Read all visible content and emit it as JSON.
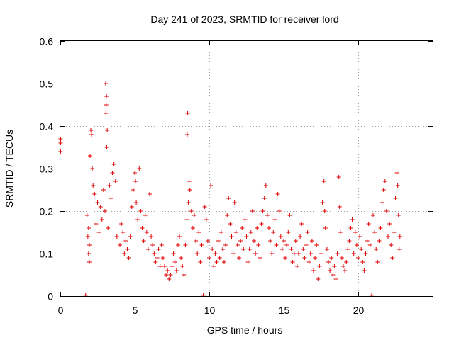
{
  "chart_data": {
    "type": "scatter",
    "title": "Day 241 of 2023, SRMTID for receiver lord",
    "xlabel": "GPS time / hours",
    "ylabel": "SRMTID / TECUs",
    "xlim": [
      0,
      25
    ],
    "ylim": [
      0,
      0.6
    ],
    "xticks": [
      0,
      5,
      10,
      15,
      20
    ],
    "xtick_labels": [
      "0",
      "5",
      "10",
      "15",
      "20"
    ],
    "yticks": [
      0,
      0.1,
      0.2,
      0.3,
      0.4,
      0.5,
      0.6
    ],
    "ytick_labels": [
      "0",
      "0.1",
      "0.2",
      "0.3",
      "0.4",
      "0.5",
      "0.6"
    ],
    "grid": true,
    "marker": "+",
    "color": "#e00000",
    "series": [
      {
        "name": "SRMTID",
        "points": [
          [
            0.02,
            0.37
          ],
          [
            0.02,
            0.36
          ],
          [
            0.02,
            0.34
          ],
          [
            1.7,
            0.002
          ],
          [
            9.6,
            0.002
          ],
          [
            20.9,
            0.002
          ],
          [
            3.05,
            0.5
          ],
          [
            3.1,
            0.47
          ],
          [
            3.08,
            0.45
          ],
          [
            3.06,
            0.43
          ],
          [
            3.15,
            0.39
          ],
          [
            3.12,
            0.35
          ],
          [
            8.55,
            0.43
          ],
          [
            8.52,
            0.38
          ],
          [
            2.05,
            0.39
          ],
          [
            2.1,
            0.38
          ],
          [
            2.0,
            0.33
          ],
          [
            2.15,
            0.3
          ],
          [
            2.2,
            0.26
          ],
          [
            2.3,
            0.24
          ],
          [
            2.5,
            0.22
          ],
          [
            2.7,
            0.21
          ],
          [
            2.9,
            0.25
          ],
          [
            3.3,
            0.26
          ],
          [
            3.5,
            0.29
          ],
          [
            3.6,
            0.31
          ],
          [
            3.7,
            0.27
          ],
          [
            3.4,
            0.23
          ],
          [
            1.8,
            0.19
          ],
          [
            1.9,
            0.16
          ],
          [
            1.85,
            0.14
          ],
          [
            1.95,
            0.12
          ],
          [
            1.9,
            0.1
          ],
          [
            1.95,
            0.08
          ],
          [
            2.4,
            0.17
          ],
          [
            2.6,
            0.15
          ],
          [
            2.8,
            0.18
          ],
          [
            3.0,
            0.2
          ],
          [
            3.2,
            0.16
          ],
          [
            3.8,
            0.14
          ],
          [
            4.0,
            0.12
          ],
          [
            4.1,
            0.17
          ],
          [
            4.2,
            0.15
          ],
          [
            4.3,
            0.1
          ],
          [
            4.4,
            0.13
          ],
          [
            4.5,
            0.11
          ],
          [
            4.6,
            0.09
          ],
          [
            4.7,
            0.14
          ],
          [
            4.8,
            0.21
          ],
          [
            4.9,
            0.25
          ],
          [
            5.0,
            0.29
          ],
          [
            5.05,
            0.27
          ],
          [
            5.1,
            0.22
          ],
          [
            5.2,
            0.18
          ],
          [
            5.3,
            0.3
          ],
          [
            5.4,
            0.2
          ],
          [
            5.5,
            0.16
          ],
          [
            5.6,
            0.13
          ],
          [
            5.7,
            0.19
          ],
          [
            5.8,
            0.15
          ],
          [
            5.9,
            0.11
          ],
          [
            6.0,
            0.24
          ],
          [
            6.1,
            0.14
          ],
          [
            6.2,
            0.12
          ],
          [
            6.3,
            0.1
          ],
          [
            6.4,
            0.08
          ],
          [
            6.5,
            0.09
          ],
          [
            6.6,
            0.11
          ],
          [
            6.7,
            0.07
          ],
          [
            6.8,
            0.12
          ],
          [
            6.9,
            0.09
          ],
          [
            7.0,
            0.07
          ],
          [
            7.1,
            0.05
          ],
          [
            7.2,
            0.06
          ],
          [
            7.3,
            0.04
          ],
          [
            7.4,
            0.05
          ],
          [
            7.5,
            0.07
          ],
          [
            7.6,
            0.1
          ],
          [
            7.7,
            0.08
          ],
          [
            7.8,
            0.06
          ],
          [
            7.9,
            0.12
          ],
          [
            8.0,
            0.14
          ],
          [
            8.1,
            0.09
          ],
          [
            8.2,
            0.07
          ],
          [
            8.3,
            0.05
          ],
          [
            8.4,
            0.12
          ],
          [
            8.5,
            0.18
          ],
          [
            8.6,
            0.22
          ],
          [
            8.65,
            0.27
          ],
          [
            8.7,
            0.25
          ],
          [
            8.8,
            0.2
          ],
          [
            8.9,
            0.16
          ],
          [
            9.0,
            0.19
          ],
          [
            9.1,
            0.13
          ],
          [
            9.2,
            0.1
          ],
          [
            9.3,
            0.15
          ],
          [
            9.4,
            0.08
          ],
          [
            9.5,
            0.12
          ],
          [
            9.7,
            0.21
          ],
          [
            9.8,
            0.18
          ],
          [
            9.9,
            0.13
          ],
          [
            10.0,
            0.09
          ],
          [
            10.1,
            0.26
          ],
          [
            10.2,
            0.11
          ],
          [
            10.3,
            0.07
          ],
          [
            10.4,
            0.1
          ],
          [
            10.5,
            0.08
          ],
          [
            10.6,
            0.13
          ],
          [
            10.7,
            0.09
          ],
          [
            10.8,
            0.15
          ],
          [
            10.9,
            0.11
          ],
          [
            11.0,
            0.08
          ],
          [
            11.1,
            0.12
          ],
          [
            11.2,
            0.19
          ],
          [
            11.3,
            0.23
          ],
          [
            11.4,
            0.17
          ],
          [
            11.5,
            0.14
          ],
          [
            11.6,
            0.1
          ],
          [
            11.7,
            0.22
          ],
          [
            11.8,
            0.15
          ],
          [
            11.9,
            0.12
          ],
          [
            12.0,
            0.09
          ],
          [
            12.1,
            0.13
          ],
          [
            12.2,
            0.16
          ],
          [
            12.3,
            0.11
          ],
          [
            12.4,
            0.18
          ],
          [
            12.5,
            0.14
          ],
          [
            12.6,
            0.08
          ],
          [
            12.7,
            0.11
          ],
          [
            12.8,
            0.15
          ],
          [
            12.9,
            0.2
          ],
          [
            13.0,
            0.13
          ],
          [
            13.1,
            0.1
          ],
          [
            13.2,
            0.16
          ],
          [
            13.3,
            0.12
          ],
          [
            13.4,
            0.09
          ],
          [
            13.5,
            0.17
          ],
          [
            13.6,
            0.2
          ],
          [
            13.7,
            0.23
          ],
          [
            13.8,
            0.26
          ],
          [
            13.9,
            0.19
          ],
          [
            14.0,
            0.16
          ],
          [
            14.1,
            0.13
          ],
          [
            14.2,
            0.1
          ],
          [
            14.3,
            0.15
          ],
          [
            14.4,
            0.18
          ],
          [
            14.5,
            0.12
          ],
          [
            14.6,
            0.24
          ],
          [
            14.7,
            0.2
          ],
          [
            14.8,
            0.14
          ],
          [
            14.9,
            0.11
          ],
          [
            15.0,
            0.13
          ],
          [
            15.1,
            0.09
          ],
          [
            15.2,
            0.12
          ],
          [
            15.3,
            0.15
          ],
          [
            15.4,
            0.19
          ],
          [
            15.5,
            0.11
          ],
          [
            15.6,
            0.08
          ],
          [
            15.7,
            0.1
          ],
          [
            15.8,
            0.13
          ],
          [
            15.9,
            0.07
          ],
          [
            16.0,
            0.1
          ],
          [
            16.1,
            0.14
          ],
          [
            16.2,
            0.17
          ],
          [
            16.3,
            0.11
          ],
          [
            16.4,
            0.09
          ],
          [
            16.5,
            0.12
          ],
          [
            16.6,
            0.15
          ],
          [
            16.7,
            0.08
          ],
          [
            16.8,
            0.1
          ],
          [
            16.9,
            0.13
          ],
          [
            17.0,
            0.06
          ],
          [
            17.1,
            0.09
          ],
          [
            17.2,
            0.12
          ],
          [
            17.3,
            0.04
          ],
          [
            17.4,
            0.07
          ],
          [
            17.5,
            0.1
          ],
          [
            17.6,
            0.22
          ],
          [
            17.7,
            0.27
          ],
          [
            17.75,
            0.2
          ],
          [
            17.8,
            0.16
          ],
          [
            17.9,
            0.11
          ],
          [
            18.0,
            0.08
          ],
          [
            18.1,
            0.06
          ],
          [
            18.2,
            0.09
          ],
          [
            18.3,
            0.05
          ],
          [
            18.4,
            0.07
          ],
          [
            18.5,
            0.04
          ],
          [
            18.6,
            0.1
          ],
          [
            18.7,
            0.28
          ],
          [
            18.75,
            0.21
          ],
          [
            18.8,
            0.15
          ],
          [
            18.9,
            0.09
          ],
          [
            19.0,
            0.07
          ],
          [
            19.1,
            0.06
          ],
          [
            19.2,
            0.08
          ],
          [
            19.3,
            0.11
          ],
          [
            19.4,
            0.13
          ],
          [
            19.5,
            0.16
          ],
          [
            19.6,
            0.18
          ],
          [
            19.7,
            0.1
          ],
          [
            19.8,
            0.15
          ],
          [
            19.9,
            0.12
          ],
          [
            20.0,
            0.09
          ],
          [
            20.1,
            0.14
          ],
          [
            20.2,
            0.11
          ],
          [
            20.3,
            0.08
          ],
          [
            20.4,
            0.06
          ],
          [
            20.5,
            0.1
          ],
          [
            20.6,
            0.13
          ],
          [
            20.7,
            0.17
          ],
          [
            20.8,
            0.12
          ],
          [
            21.0,
            0.19
          ],
          [
            21.1,
            0.15
          ],
          [
            21.2,
            0.11
          ],
          [
            21.3,
            0.08
          ],
          [
            21.4,
            0.13
          ],
          [
            21.5,
            0.16
          ],
          [
            21.6,
            0.22
          ],
          [
            21.7,
            0.25
          ],
          [
            21.8,
            0.27
          ],
          [
            21.9,
            0.2
          ],
          [
            22.0,
            0.14
          ],
          [
            22.1,
            0.17
          ],
          [
            22.2,
            0.12
          ],
          [
            22.3,
            0.09
          ],
          [
            22.4,
            0.15
          ],
          [
            22.5,
            0.23
          ],
          [
            22.6,
            0.29
          ],
          [
            22.65,
            0.26
          ],
          [
            22.7,
            0.19
          ],
          [
            22.75,
            0.11
          ],
          [
            22.8,
            0.14
          ]
        ]
      }
    ]
  }
}
